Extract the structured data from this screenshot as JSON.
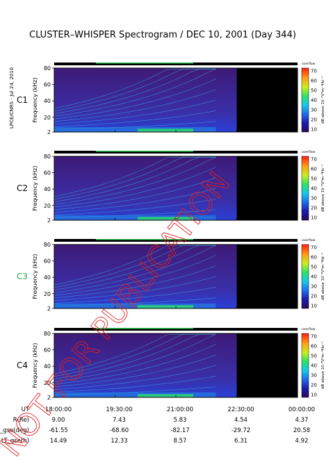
{
  "title": "CLUSTER–WHISPER Spectrogram / DEC 10, 2001 (Day 344)",
  "side_label": "LPCE/CNRS - Jul 24, 2010",
  "watermark": "NOT FOR PUBLICATION",
  "colors": {
    "spacecraft_label": "#000000",
    "c3_label": "#1faa4a",
    "watermark": "#e02020",
    "off_region": "#000000"
  },
  "chart_data": {
    "type": "heatmap",
    "xlim": [
      "18:00:00",
      "00:00:00"
    ],
    "ylim": [
      2,
      80
    ],
    "ylabel": "Frequency (kHz)",
    "yticks": [
      "80",
      "60",
      "40",
      "20",
      "2"
    ],
    "colorbar": {
      "label": "dB above 10⁻⁸V²m⁻²Hz⁻¹",
      "top_label": "overflow",
      "ticks": [
        "70",
        "60",
        "50",
        "40",
        "30",
        "20",
        "10"
      ]
    },
    "panels": [
      {
        "name": "C1",
        "data_end": "22:30:00"
      },
      {
        "name": "C2",
        "data_end": "22:30:00"
      },
      {
        "name": "C3",
        "data_end": "22:30:00"
      },
      {
        "name": "C4",
        "data_end": "22:30:00"
      }
    ],
    "table": {
      "row_labels": [
        "UT",
        "R(Re)",
        "Lat_gse(deg)",
        "LT_gse(h)"
      ],
      "columns": [
        [
          "18:00:00",
          "9.00",
          "-61.55",
          "14.49"
        ],
        [
          "19:30:00",
          "7.43",
          "-68.60",
          "12.33"
        ],
        [
          "21:00:00",
          "5.83",
          "-82.17",
          "8.57"
        ],
        [
          "22:30:00",
          "4.54",
          "-29.72",
          "6.31"
        ],
        [
          "00:00:00",
          "4.37",
          "20.58",
          "4.92"
        ]
      ]
    }
  }
}
